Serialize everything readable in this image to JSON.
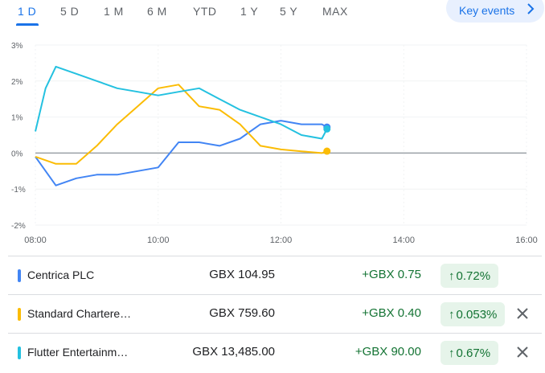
{
  "tabs": [
    "1 D",
    "5 D",
    "1 M",
    "6 M",
    "YTD",
    "1 Y",
    "5 Y",
    "MAX"
  ],
  "key_events_label": "Key events",
  "chart_data": {
    "type": "line",
    "x_label": "",
    "y_label": "",
    "x_ticks": [
      "08:00",
      "10:00",
      "12:00",
      "14:00",
      "16:00"
    ],
    "y_ticks": [
      "3%",
      "2%",
      "1%",
      "0%",
      "-1%",
      "-2%"
    ],
    "ylim": [
      -2,
      3
    ],
    "grid": true,
    "series": [
      {
        "name": "Centrica PLC",
        "color": "#4285f4",
        "x": [
          "08:00",
          "08:20",
          "08:40",
          "09:00",
          "09:20",
          "09:40",
          "10:00",
          "10:20",
          "10:40",
          "11:00",
          "11:20",
          "11:40",
          "12:00",
          "12:20",
          "12:40",
          "12:45"
        ],
        "values": [
          -0.1,
          -0.9,
          -0.7,
          -0.6,
          -0.6,
          -0.5,
          -0.4,
          0.3,
          0.3,
          0.2,
          0.4,
          0.8,
          0.9,
          0.8,
          0.8,
          0.72
        ]
      },
      {
        "name": "Standard Chartered",
        "color": "#fbbc04",
        "x": [
          "08:00",
          "08:20",
          "08:40",
          "09:00",
          "09:20",
          "09:40",
          "10:00",
          "10:20",
          "10:40",
          "11:00",
          "11:20",
          "11:40",
          "12:00",
          "12:20",
          "12:40",
          "12:45"
        ],
        "values": [
          -0.1,
          -0.3,
          -0.3,
          0.2,
          0.8,
          1.3,
          1.8,
          1.9,
          1.3,
          1.2,
          0.8,
          0.2,
          0.1,
          0.05,
          0.0,
          0.053
        ]
      },
      {
        "name": "Flutter Entertainment",
        "color": "#24c1e0",
        "x": [
          "08:00",
          "08:10",
          "08:20",
          "08:40",
          "09:00",
          "09:20",
          "09:40",
          "10:00",
          "10:20",
          "10:40",
          "11:00",
          "11:20",
          "11:40",
          "12:00",
          "12:20",
          "12:40",
          "12:45"
        ],
        "values": [
          0.6,
          1.8,
          2.4,
          2.2,
          2.0,
          1.8,
          1.7,
          1.6,
          1.7,
          1.8,
          1.5,
          1.2,
          1.0,
          0.8,
          0.5,
          0.4,
          0.67
        ]
      }
    ]
  },
  "rows": [
    {
      "name": "Centrica PLC",
      "color": "#4285f4",
      "price": "GBX 104.95",
      "change": "+GBX 0.75",
      "pct": "0.72%",
      "closable": false
    },
    {
      "name": "Standard Chartere…",
      "color": "#fbbc04",
      "price": "GBX 759.60",
      "change": "+GBX 0.40",
      "pct": "0.053%",
      "closable": true
    },
    {
      "name": "Flutter Entertainm…",
      "color": "#24c1e0",
      "price": "GBX 13,485.00",
      "change": "+GBX 90.00",
      "pct": "0.67%",
      "closable": true
    }
  ]
}
